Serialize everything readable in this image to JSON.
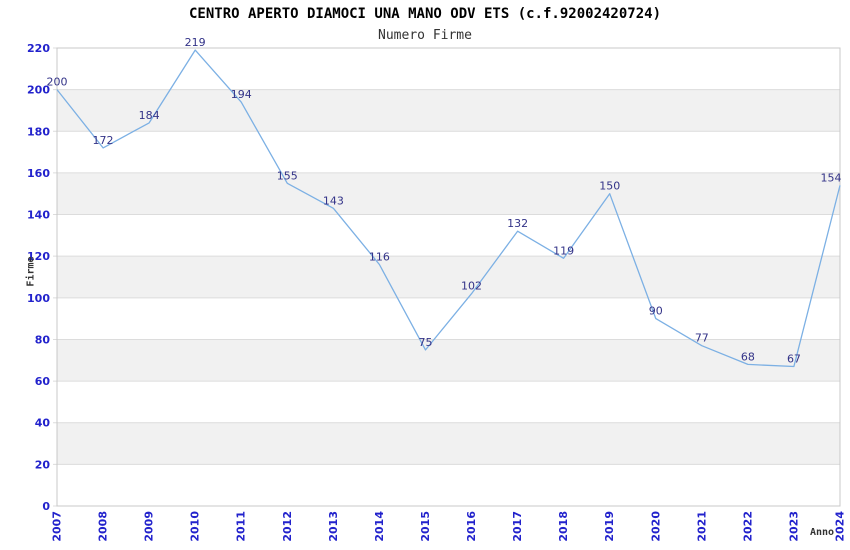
{
  "chart_data": {
    "type": "line",
    "title": "CENTRO APERTO DIAMOCI UNA MANO ODV ETS (c.f.92002420724)",
    "subtitle": "Numero Firme",
    "xlabel": "Anno",
    "ylabel": "Firme",
    "categories": [
      "2007",
      "2008",
      "2009",
      "2010",
      "2011",
      "2012",
      "2013",
      "2014",
      "2015",
      "2016",
      "2017",
      "2018",
      "2019",
      "2020",
      "2021",
      "2022",
      "2023",
      "2024"
    ],
    "values": [
      200,
      172,
      184,
      219,
      194,
      155,
      143,
      116,
      75,
      102,
      132,
      119,
      150,
      90,
      77,
      68,
      67,
      154
    ],
    "ylim": [
      0,
      220
    ],
    "ytick_step": 20,
    "grid": "horizontal gridlines with alternating shaded bands",
    "legend_position": "none",
    "data_labels_shown": true,
    "colors": {
      "line": "#7cb0e4",
      "data_label": "#333388",
      "tick_label": "#2222cc",
      "band_fill": "#f1f1f1",
      "gridline": "#dcdcdc",
      "plot_border": "#c8c8c8",
      "title": "#000000",
      "subtitle": "#333333",
      "axis_title": "#333333",
      "background": "#ffffff"
    }
  }
}
